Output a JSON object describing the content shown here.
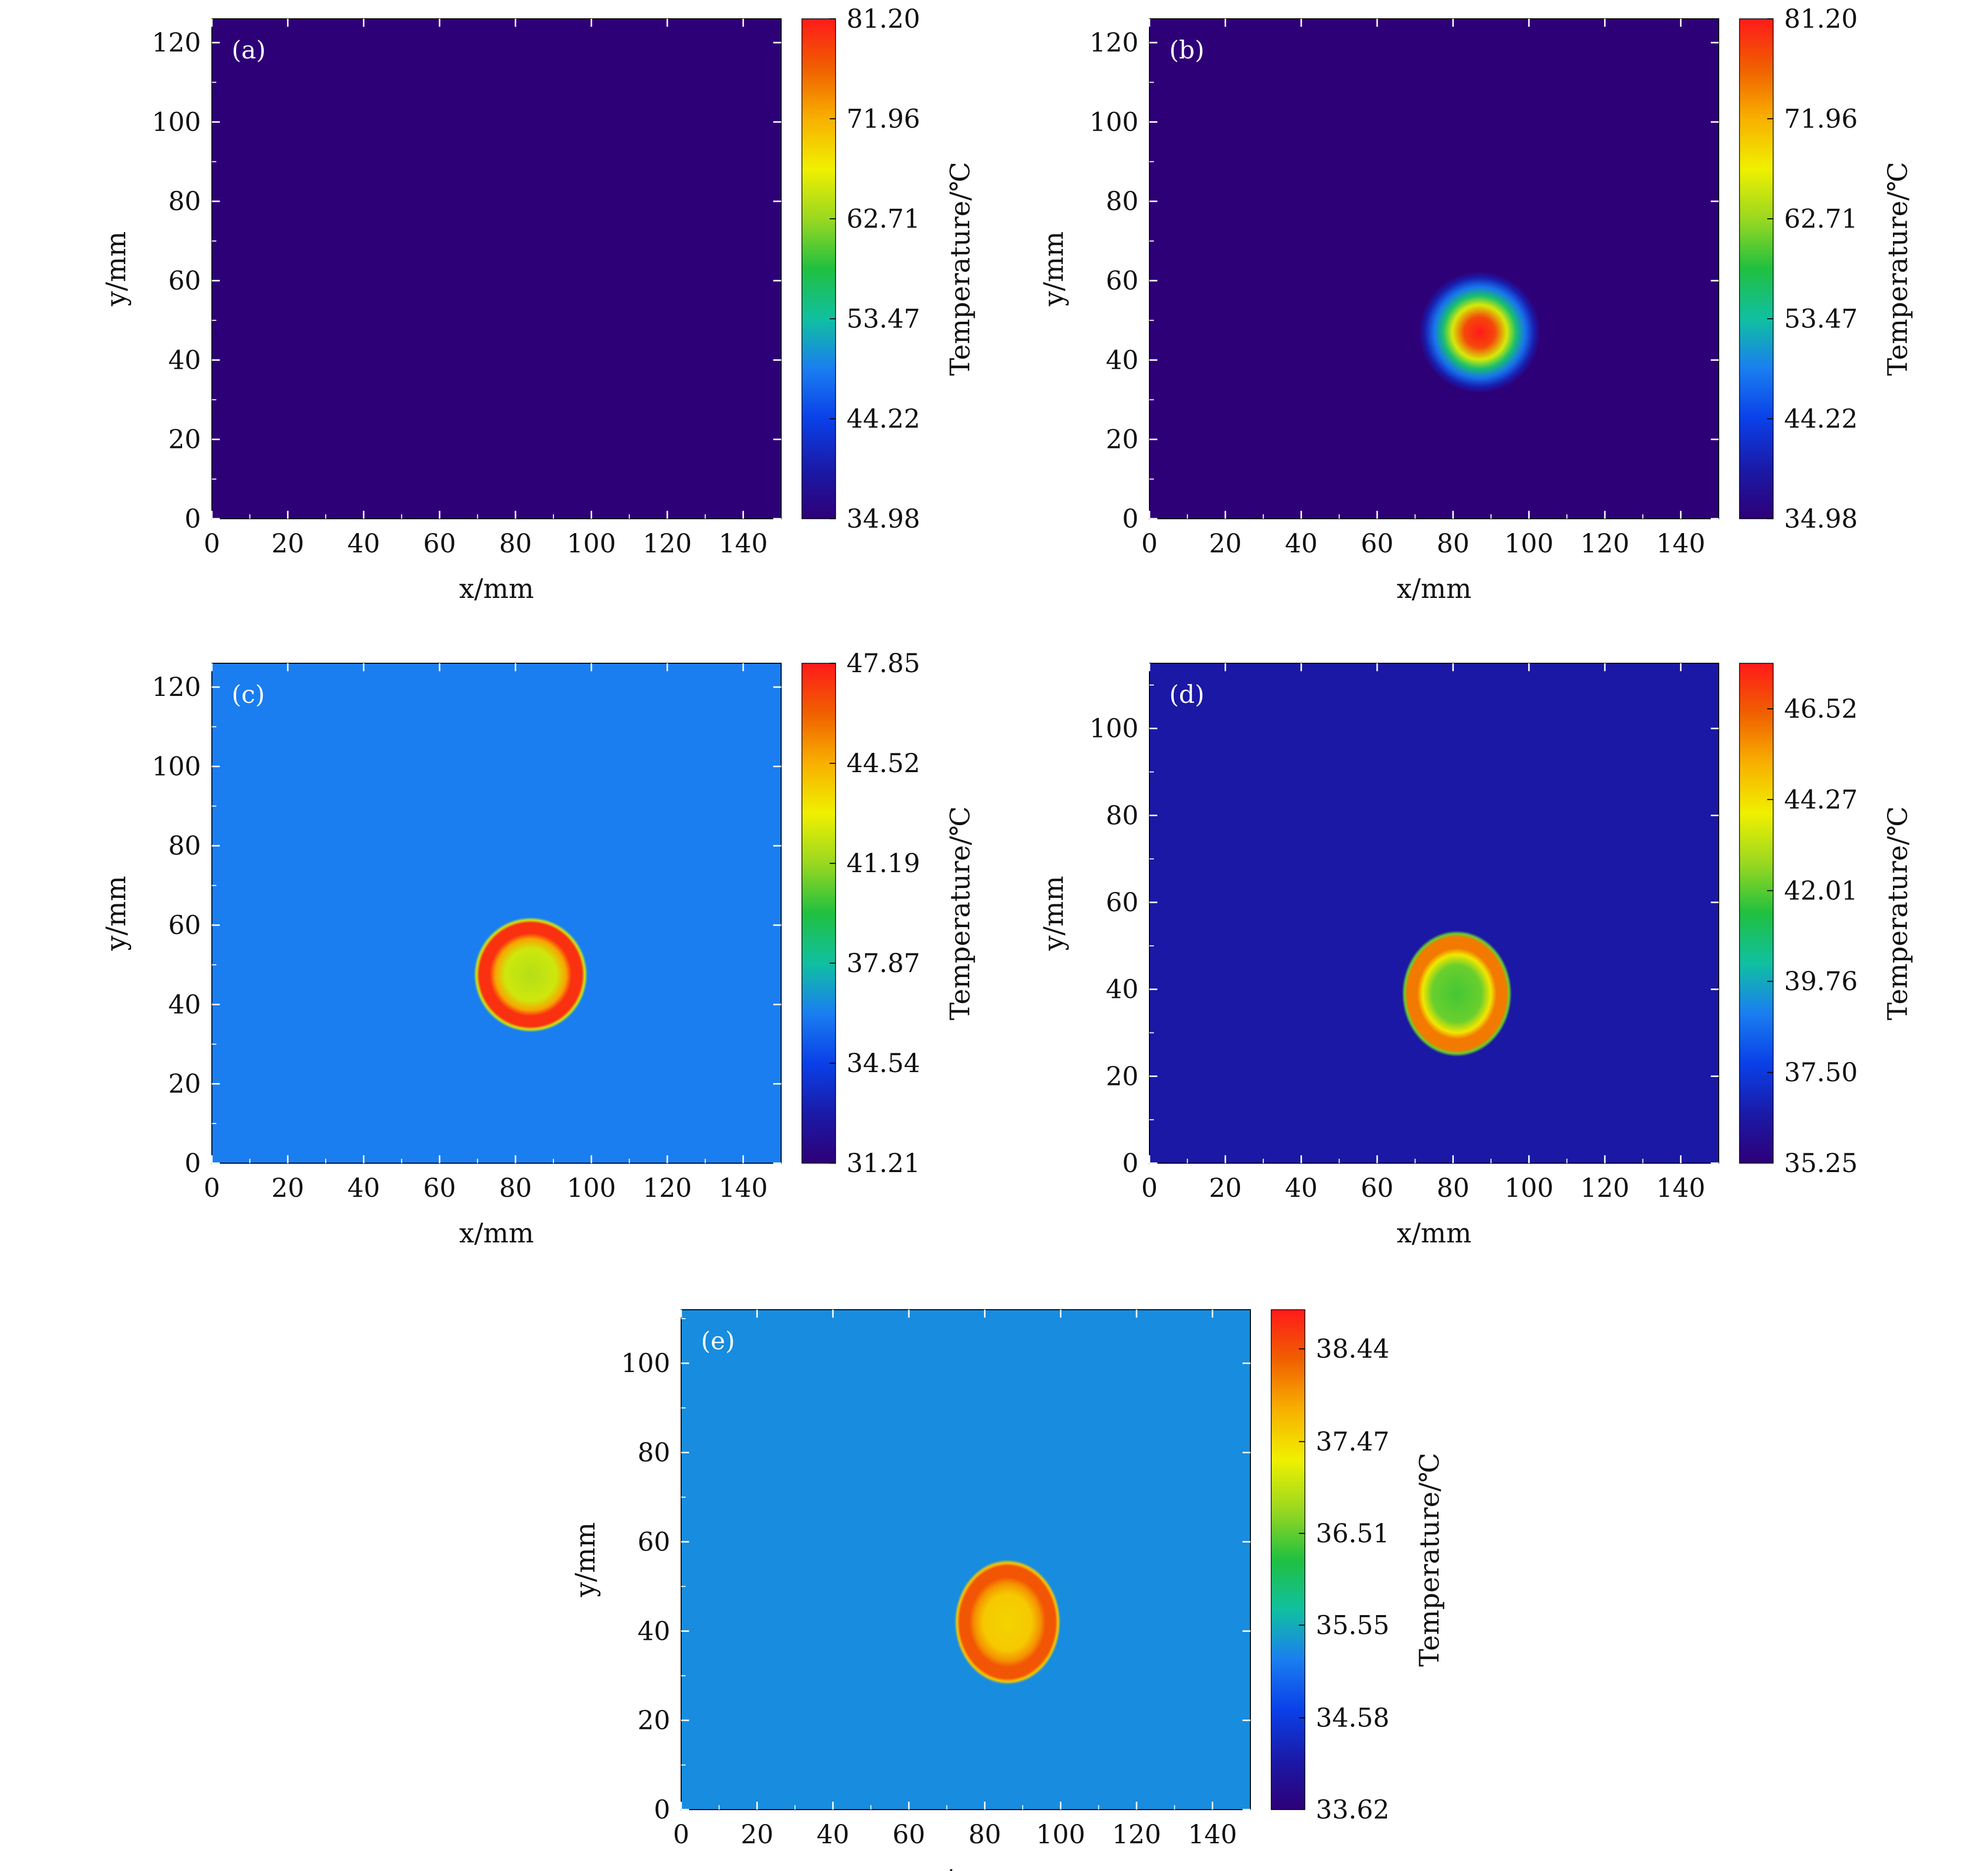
{
  "colormap": [
    "#2e0078",
    "#1a1aa8",
    "#0a40e8",
    "#1a7ef0",
    "#10c0a0",
    "#20c040",
    "#9ad820",
    "#f0f000",
    "#f8b000",
    "#f06000",
    "#ff1a1a"
  ],
  "chart_data": [
    {
      "type": "heatmap",
      "panel_label": "(a)",
      "xlabel": "x/mm",
      "ylabel": "y/mm",
      "xlim": [
        0,
        150
      ],
      "ylim": [
        0,
        126
      ],
      "xticks": [
        0,
        20,
        40,
        60,
        80,
        100,
        120,
        140
      ],
      "yticks": [
        0,
        20,
        40,
        60,
        80,
        100,
        120
      ],
      "colorbar": {
        "label": "Temperature/℃",
        "range": [
          34.98,
          81.2
        ],
        "ticks": [
          "34.98",
          "44.22",
          "53.47",
          "62.71",
          "71.96",
          "81.20"
        ]
      },
      "background_temperature": 34.98,
      "hot_spot": null
    },
    {
      "type": "heatmap",
      "panel_label": "(b)",
      "xlabel": "x/mm",
      "ylabel": "y/mm",
      "xlim": [
        0,
        150
      ],
      "ylim": [
        0,
        126
      ],
      "xticks": [
        0,
        20,
        40,
        60,
        80,
        100,
        120,
        140
      ],
      "yticks": [
        0,
        20,
        40,
        60,
        80,
        100,
        120
      ],
      "colorbar": {
        "label": "Temperature/℃",
        "range": [
          34.98,
          81.2
        ],
        "ticks": [
          "34.98",
          "44.22",
          "53.47",
          "62.71",
          "71.96",
          "81.20"
        ]
      },
      "background_temperature": 34.98,
      "hot_spot": {
        "x": 87,
        "y": 47,
        "radius": 16,
        "profile": "gaussian",
        "peak_temperature": 81.2
      }
    },
    {
      "type": "heatmap",
      "panel_label": "(c)",
      "xlabel": "x/mm",
      "ylabel": "y/mm",
      "xlim": [
        0,
        150
      ],
      "ylim": [
        0,
        126
      ],
      "xticks": [
        0,
        20,
        40,
        60,
        80,
        100,
        120,
        140
      ],
      "yticks": [
        0,
        20,
        40,
        60,
        80,
        100,
        120
      ],
      "colorbar": {
        "label": "Temperature/℃",
        "range": [
          31.21,
          47.85
        ],
        "ticks": [
          "31.21",
          "34.54",
          "37.87",
          "41.19",
          "44.52",
          "47.85"
        ]
      },
      "background_temperature": 36.2,
      "hot_spot": {
        "x": 84,
        "y": 47.5,
        "rx": 15,
        "ry": 14.5,
        "profile": "ring",
        "ring_temperature": 47.3,
        "core_temperature": 42.2
      }
    },
    {
      "type": "heatmap",
      "panel_label": "(d)",
      "xlabel": "x/mm",
      "ylabel": "y/mm",
      "xlim": [
        0,
        150
      ],
      "ylim": [
        0,
        115
      ],
      "xticks": [
        0,
        20,
        40,
        60,
        80,
        100,
        120,
        140
      ],
      "yticks": [
        0,
        20,
        40,
        60,
        80,
        100
      ],
      "colorbar": {
        "label": "Temperature/℃",
        "range": [
          35.25,
          47.65
        ],
        "ticks": [
          "37.50",
          "39.76",
          "42.01",
          "44.27",
          "46.52"
        ],
        "bottom_label": "35.25"
      },
      "background_temperature": 36.4,
      "hot_spot": {
        "x": 81,
        "y": 39,
        "rx": 14.5,
        "ry": 14.5,
        "profile": "ring",
        "ring_temperature": 46.0,
        "core_temperature": 42.2
      }
    },
    {
      "type": "heatmap",
      "panel_label": "(e)",
      "xlabel": "x/mm",
      "ylabel": "y/mm",
      "xlim": [
        0,
        150
      ],
      "ylim": [
        0,
        112
      ],
      "xticks": [
        0,
        20,
        40,
        60,
        80,
        100,
        120,
        140
      ],
      "yticks": [
        0,
        20,
        40,
        60,
        80,
        100
      ],
      "colorbar": {
        "label": "Temperature/℃",
        "range": [
          33.62,
          38.85
        ],
        "ticks": [
          "34.58",
          "35.55",
          "36.51",
          "37.47",
          "38.44"
        ],
        "bottom_label": "33.62"
      },
      "background_temperature": 35.3,
      "hot_spot": {
        "x": 86,
        "y": 42,
        "rx": 14,
        "ry": 14,
        "profile": "ring",
        "ring_temperature": 38.4,
        "core_temperature": 37.6
      }
    }
  ]
}
